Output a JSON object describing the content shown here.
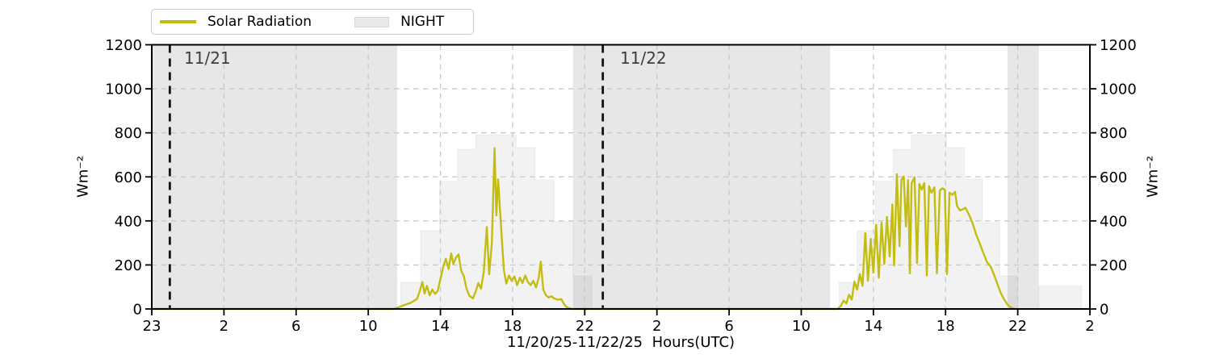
{
  "legend": {
    "items": [
      {
        "label": "Solar Radiation",
        "type": "line",
        "color": "#c4bd11"
      },
      {
        "label": "NIGHT",
        "type": "patch",
        "color": "#e9e9e9"
      }
    ]
  },
  "axes": {
    "ylabel_left": "Wm⁻²",
    "ylabel_right": "Wm⁻²",
    "xlabel": "11/20/25-11/22/25  Hours(UTC)"
  },
  "annotations": [
    {
      "text": "11/21",
      "t": 1
    },
    {
      "text": "11/22",
      "t": 25
    }
  ],
  "colors": {
    "line": "#c4bd11",
    "night_fill": "rgba(0,0,0,0.094)",
    "step_fill": "rgba(0,0,0,0.05)",
    "step_stroke": "rgba(0,0,0,0.045)",
    "grid": "#c9c9c9",
    "day_marker": "#111111",
    "spine": "#000000",
    "annotation_text": "#3d3d3d"
  },
  "chart_data": {
    "type": "line",
    "title": "",
    "xlabel": "11/20/25-11/22/25  Hours(UTC)",
    "ylabel": "Wm⁻²",
    "ylim": [
      0,
      1200
    ],
    "yticks": [
      0,
      200,
      400,
      600,
      800,
      1000,
      1200
    ],
    "grid": true,
    "legend_position": "top-left",
    "x_axis": {
      "note": "t = hours from left edge; axis spans 52 h total, ticks every 4 h",
      "t_min": 0,
      "t_max": 52,
      "tick_t": [
        0,
        4,
        8,
        12,
        16,
        20,
        24,
        28,
        32,
        36,
        40,
        44,
        48,
        52
      ],
      "tick_labels": [
        "23",
        "2",
        "6",
        "10",
        "14",
        "18",
        "22",
        "2",
        "6",
        "10",
        "14",
        "18",
        "22",
        "2"
      ]
    },
    "day_markers": [
      {
        "label": "11/21",
        "t": 1
      },
      {
        "label": "11/22",
        "t": 25
      }
    ],
    "night_bands_t": [
      [
        0,
        13.6
      ],
      [
        23.35,
        37.6
      ],
      [
        47.43,
        49.17
      ]
    ],
    "night_tail_strip": {
      "t": [
        49.17,
        51.55
      ],
      "value": 105
    },
    "clear_sky_steps": [
      [
        [
          13.8,
          14.9,
          120
        ],
        [
          14.9,
          15.95,
          355
        ],
        [
          15.95,
          16.95,
          580
        ],
        [
          16.95,
          17.95,
          725
        ],
        [
          17.95,
          20.2,
          790
        ],
        [
          20.2,
          21.25,
          733
        ],
        [
          21.25,
          22.3,
          586
        ],
        [
          22.3,
          23.35,
          396
        ],
        [
          23.35,
          24.4,
          150
        ]
      ],
      [
        [
          38.1,
          39.1,
          120
        ],
        [
          39.1,
          40.1,
          355
        ],
        [
          40.1,
          41.1,
          580
        ],
        [
          41.1,
          42.1,
          725
        ],
        [
          42.1,
          44.05,
          790
        ],
        [
          44.05,
          45.05,
          733
        ],
        [
          45.05,
          46.05,
          590
        ],
        [
          46.05,
          47.0,
          392
        ],
        [
          47.0,
          48.0,
          150
        ]
      ]
    ],
    "series": [
      {
        "name": "Solar Radiation",
        "color": "#c4bd11",
        "units": "Wm⁻²",
        "points": [
          [
            0,
            0
          ],
          [
            13.4,
            0
          ],
          [
            13.7,
            8
          ],
          [
            14.0,
            18
          ],
          [
            14.35,
            28
          ],
          [
            14.7,
            45
          ],
          [
            14.85,
            80
          ],
          [
            15.0,
            122
          ],
          [
            15.12,
            70
          ],
          [
            15.25,
            105
          ],
          [
            15.4,
            62
          ],
          [
            15.55,
            88
          ],
          [
            15.7,
            68
          ],
          [
            15.85,
            82
          ],
          [
            16.0,
            135
          ],
          [
            16.15,
            190
          ],
          [
            16.3,
            228
          ],
          [
            16.45,
            182
          ],
          [
            16.6,
            252
          ],
          [
            16.72,
            205
          ],
          [
            16.85,
            232
          ],
          [
            17.0,
            248
          ],
          [
            17.15,
            175
          ],
          [
            17.3,
            148
          ],
          [
            17.45,
            92
          ],
          [
            17.6,
            60
          ],
          [
            17.8,
            48
          ],
          [
            17.95,
            78
          ],
          [
            18.1,
            118
          ],
          [
            18.25,
            92
          ],
          [
            18.4,
            168
          ],
          [
            18.57,
            372
          ],
          [
            18.7,
            158
          ],
          [
            18.85,
            298
          ],
          [
            19.0,
            730
          ],
          [
            19.1,
            425
          ],
          [
            19.2,
            588
          ],
          [
            19.3,
            452
          ],
          [
            19.42,
            295
          ],
          [
            19.52,
            175
          ],
          [
            19.65,
            115
          ],
          [
            19.8,
            152
          ],
          [
            19.95,
            128
          ],
          [
            20.1,
            148
          ],
          [
            20.25,
            108
          ],
          [
            20.4,
            142
          ],
          [
            20.55,
            118
          ],
          [
            20.7,
            152
          ],
          [
            20.85,
            122
          ],
          [
            21.0,
            108
          ],
          [
            21.15,
            128
          ],
          [
            21.3,
            98
          ],
          [
            21.45,
            142
          ],
          [
            21.56,
            215
          ],
          [
            21.7,
            88
          ],
          [
            21.85,
            62
          ],
          [
            22.0,
            52
          ],
          [
            22.15,
            58
          ],
          [
            22.3,
            48
          ],
          [
            22.5,
            42
          ],
          [
            22.7,
            45
          ],
          [
            22.85,
            22
          ],
          [
            23.0,
            8
          ],
          [
            23.3,
            0
          ],
          [
            38.0,
            0
          ],
          [
            38.2,
            14
          ],
          [
            38.35,
            38
          ],
          [
            38.5,
            24
          ],
          [
            38.65,
            65
          ],
          [
            38.8,
            42
          ],
          [
            38.95,
            125
          ],
          [
            39.1,
            88
          ],
          [
            39.25,
            158
          ],
          [
            39.4,
            105
          ],
          [
            39.55,
            345
          ],
          [
            39.7,
            128
          ],
          [
            39.85,
            318
          ],
          [
            40.0,
            165
          ],
          [
            40.15,
            382
          ],
          [
            40.3,
            142
          ],
          [
            40.45,
            392
          ],
          [
            40.6,
            205
          ],
          [
            40.75,
            418
          ],
          [
            40.9,
            238
          ],
          [
            41.05,
            475
          ],
          [
            41.15,
            198
          ],
          [
            41.3,
            612
          ],
          [
            41.45,
            285
          ],
          [
            41.55,
            585
          ],
          [
            41.68,
            602
          ],
          [
            41.8,
            375
          ],
          [
            41.92,
            585
          ],
          [
            42.02,
            162
          ],
          [
            42.12,
            572
          ],
          [
            42.28,
            598
          ],
          [
            42.42,
            208
          ],
          [
            42.55,
            568
          ],
          [
            42.68,
            542
          ],
          [
            42.82,
            572
          ],
          [
            42.96,
            152
          ],
          [
            43.08,
            558
          ],
          [
            43.22,
            528
          ],
          [
            43.38,
            552
          ],
          [
            43.52,
            162
          ],
          [
            43.68,
            538
          ],
          [
            43.82,
            548
          ],
          [
            43.96,
            542
          ],
          [
            44.08,
            158
          ],
          [
            44.22,
            528
          ],
          [
            44.38,
            518
          ],
          [
            44.52,
            532
          ],
          [
            44.64,
            468
          ],
          [
            44.78,
            448
          ],
          [
            44.95,
            452
          ],
          [
            45.1,
            460
          ],
          [
            45.3,
            428
          ],
          [
            45.5,
            388
          ],
          [
            45.7,
            338
          ],
          [
            45.9,
            296
          ],
          [
            46.1,
            252
          ],
          [
            46.3,
            212
          ],
          [
            46.5,
            192
          ],
          [
            46.7,
            152
          ],
          [
            46.88,
            112
          ],
          [
            47.05,
            74
          ],
          [
            47.25,
            42
          ],
          [
            47.45,
            18
          ],
          [
            47.65,
            5
          ],
          [
            47.85,
            0
          ]
        ]
      }
    ]
  }
}
